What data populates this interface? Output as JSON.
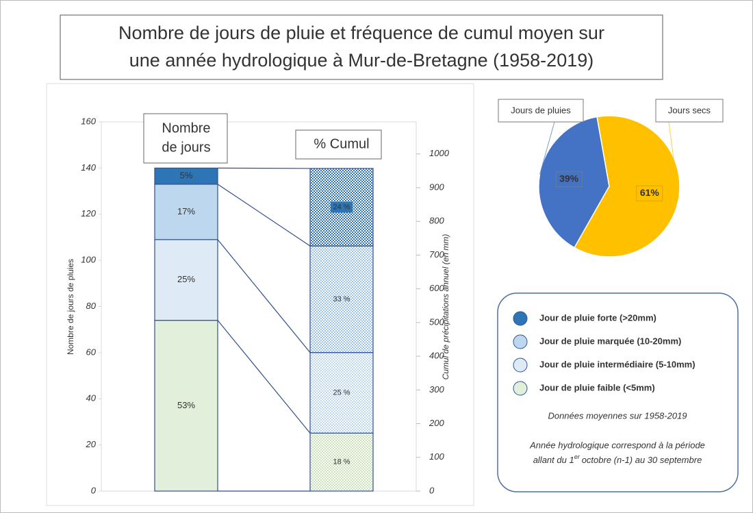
{
  "title": [
    "Nombre de jours de pluie et fréquence de cumul moyen sur",
    "une année hydrologique à Mur-de-Bretagne (1958-2019)"
  ],
  "legend_notes": [
    "Données moyennes sur 1958-2019",
    "Année hydrologique correspond à la période",
    "allant du 1",
    "er",
    "octobre (n-1) au 30 septembre"
  ],
  "chart_data": [
    {
      "type": "stacked_bar",
      "categories": [
        [
          "Nombre",
          "de jours"
        ],
        [
          "% Cumul"
        ]
      ],
      "ylabel": "Nombre de jours de pluies",
      "y2label": "Cumul de précipitations annuel (en mm)",
      "ylim": [
        0,
        160
      ],
      "yticks": [
        0,
        20,
        40,
        60,
        80,
        100,
        120,
        140,
        160
      ],
      "y2lim": [
        0,
        1095
      ],
      "y2ticks": [
        0,
        100,
        200,
        300,
        400,
        500,
        600,
        700,
        800,
        900,
        1000
      ],
      "series": [
        {
          "name": "Jour de pluie faible (<5mm)",
          "color": "#e2efda",
          "values": [
            74,
            null
          ],
          "value_labels": [
            "53%",
            null
          ]
        },
        {
          "name": "Jour de pluie intermédiaire (5-10mm)",
          "color": "#deebf7",
          "values": [
            35,
            null
          ],
          "value_labels": [
            "25%",
            null
          ]
        },
        {
          "name": "Jour de pluie marquée (10-20mm)",
          "color": "#bdd7ee",
          "values": [
            24,
            null
          ],
          "value_labels": [
            "17%",
            null
          ]
        },
        {
          "name": "Jour de pluie forte (>20mm)",
          "color": "#2e75b6",
          "values": [
            7,
            null
          ],
          "value_labels": [
            "5%",
            null
          ]
        },
        {
          "name": "Jour de pluie faible (<5mm)",
          "color": "#c9e2b8",
          "axis": "y2",
          "values": [
            null,
            172
          ],
          "value_labels": [
            null,
            "18 %"
          ]
        },
        {
          "name": "Jour de pluie intermédiaire (5-10mm)",
          "color": "#bdd7ee",
          "axis": "y2",
          "values": [
            null,
            239
          ],
          "value_labels": [
            null,
            "25 %"
          ]
        },
        {
          "name": "Jour de pluie marquée (10-20mm)",
          "color": "#9dc3e6",
          "axis": "y2",
          "values": [
            null,
            316
          ],
          "value_labels": [
            null,
            "33 %"
          ]
        },
        {
          "name": "Jour de pluie forte (>20mm)",
          "color": "#2e75b6",
          "axis": "y2",
          "values": [
            null,
            230
          ],
          "value_labels": [
            null,
            "24 %"
          ]
        }
      ]
    },
    {
      "type": "pie",
      "categories": [
        "Jours de pluies",
        "Jours secs"
      ],
      "values": [
        39,
        61
      ],
      "value_labels": [
        "39%",
        "61%"
      ],
      "colors": [
        "#4472c4",
        "#ffc000"
      ]
    }
  ]
}
